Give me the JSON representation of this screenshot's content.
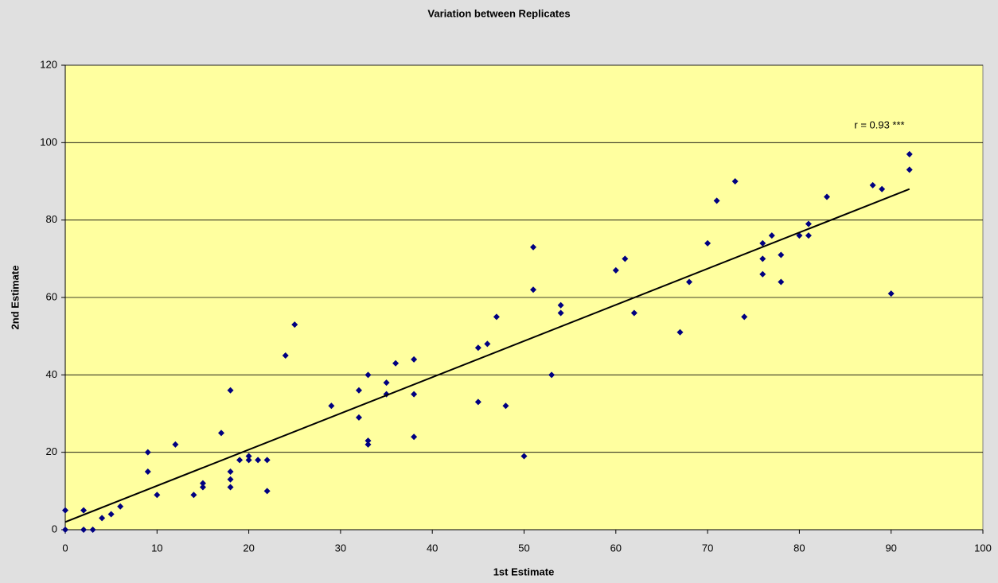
{
  "chart_data": {
    "type": "scatter",
    "title": "Variation between Replicates",
    "x_label": "1st Estimate",
    "y_label": "2nd Estimate",
    "annotation": "r = 0.93 ***",
    "x": [
      0,
      0,
      2,
      2,
      3,
      4,
      5,
      6,
      9,
      9,
      10,
      12,
      14,
      15,
      15,
      17,
      18,
      18,
      18,
      18,
      19,
      20,
      20,
      21,
      22,
      22,
      24,
      25,
      29,
      32,
      32,
      33,
      33,
      33,
      35,
      35,
      36,
      38,
      38,
      38,
      45,
      45,
      46,
      47,
      48,
      50,
      51,
      51,
      53,
      54,
      54,
      60,
      61,
      62,
      67,
      68,
      70,
      71,
      73,
      74,
      76,
      76,
      76,
      77,
      78,
      78,
      80,
      81,
      81,
      83,
      88,
      89,
      90,
      92,
      92
    ],
    "values": [
      5,
      0,
      5,
      0,
      0,
      3,
      4,
      6,
      20,
      15,
      9,
      22,
      9,
      12,
      11,
      25,
      36,
      15,
      13,
      11,
      18,
      19,
      18,
      18,
      18,
      10,
      45,
      53,
      32,
      36,
      29,
      40,
      23,
      22,
      38,
      35,
      43,
      44,
      35,
      24,
      47,
      33,
      48,
      55,
      32,
      19,
      73,
      62,
      40,
      58,
      56,
      67,
      70,
      56,
      51,
      64,
      74,
      85,
      90,
      55,
      74,
      70,
      66,
      76,
      71,
      64,
      76,
      79,
      76,
      86,
      89,
      88,
      61,
      97,
      93
    ],
    "color": "#000080",
    "trendline": {
      "x": [
        0,
        92
      ],
      "values": [
        2,
        88
      ],
      "color": "#000000"
    },
    "xlim": [
      0,
      100
    ],
    "xticks": [
      0,
      10,
      20,
      30,
      40,
      50,
      60,
      70,
      80,
      90,
      100
    ],
    "ylim": [
      0,
      120
    ],
    "yticks": [
      0,
      20,
      40,
      60,
      80,
      100,
      120
    ],
    "grid": true
  }
}
